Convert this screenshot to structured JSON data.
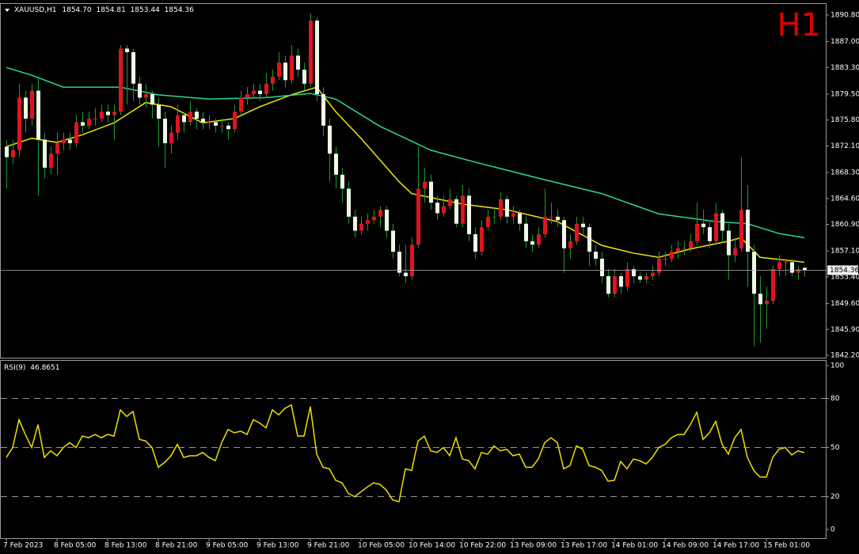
{
  "chart_data": [
    {
      "type": "candlestick",
      "title": "XAUUSD,H1",
      "ohlc_labels": [
        "1854.70",
        "1854.81",
        "1853.44",
        "1854.36"
      ],
      "annotation": "H1",
      "bull_color": "#e0141e",
      "bear_color": "#eefae6",
      "wick_color": "#1f9a2e",
      "ylim": [
        1841.86,
        1892.38
      ],
      "yticks": [
        {
          "value": 1890.8,
          "label": "1890.80"
        },
        {
          "value": 1887,
          "label": "1887.00"
        },
        {
          "value": 1883.3,
          "label": "1883.30"
        },
        {
          "value": 1879.5,
          "label": "1879.50"
        },
        {
          "value": 1875.8,
          "label": "1875.80"
        },
        {
          "value": 1872.1,
          "label": "1872.10"
        },
        {
          "value": 1868.3,
          "label": "1868.30"
        },
        {
          "value": 1864.6,
          "label": "1864.60"
        },
        {
          "value": 1860.9,
          "label": "1860.90"
        },
        {
          "value": 1857.1,
          "label": "1857.10"
        },
        {
          "value": 1853.4,
          "label": "1853.40"
        },
        {
          "value": 1849.6,
          "label": "1849.60"
        },
        {
          "value": 1845.9,
          "label": "1845.90"
        },
        {
          "value": 1842.2,
          "label": "1842.20"
        }
      ],
      "last_price": 1854.36,
      "categories": [
        "7 Feb 2023",
        null,
        null,
        null,
        null,
        null,
        null,
        null,
        "8 Feb 05:00",
        null,
        null,
        null,
        null,
        null,
        null,
        null,
        "8 Feb 13:00",
        null,
        null,
        null,
        null,
        null,
        null,
        null,
        "8 Feb 21:00",
        null,
        null,
        null,
        null,
        null,
        null,
        null,
        "9 Feb 05:00",
        null,
        null,
        null,
        null,
        null,
        null,
        null,
        "9 Feb 13:00",
        null,
        null,
        null,
        null,
        null,
        null,
        null,
        "9 Feb 21:00",
        null,
        null,
        null,
        null,
        null,
        null,
        null,
        "10 Feb 05:00",
        null,
        null,
        null,
        null,
        null,
        null,
        null,
        "10 Feb 14:00",
        null,
        null,
        null,
        null,
        null,
        null,
        null,
        "10 Feb 22:00",
        null,
        null,
        null,
        null,
        null,
        null,
        null,
        "13 Feb 09:00",
        null,
        null,
        null,
        null,
        null,
        null,
        null,
        "13 Feb 17:00",
        null,
        null,
        null,
        null,
        null,
        null,
        null,
        "14 Feb 01:00",
        null,
        null,
        null,
        null,
        null,
        null,
        null,
        "14 Feb 09:00",
        null,
        null,
        null,
        null,
        null,
        null,
        null,
        "14 Feb 17:00",
        null,
        null,
        null,
        null,
        null,
        null,
        null,
        "15 Feb 01:00",
        null,
        null,
        null,
        null,
        null,
        null
      ],
      "candles": [
        [
          1872,
          1873,
          1866,
          1870.5
        ],
        [
          1870.5,
          1873,
          1869.5,
          1871.5
        ],
        [
          1871.5,
          1881,
          1870.5,
          1879
        ],
        [
          1879,
          1880,
          1874,
          1876
        ],
        [
          1876,
          1881,
          1875,
          1880
        ],
        [
          1880,
          1882,
          1865,
          1873
        ],
        [
          1873,
          1874,
          1867.5,
          1869
        ],
        [
          1869,
          1872,
          1868,
          1871
        ],
        [
          1871,
          1874,
          1868,
          1872.5
        ],
        [
          1872.5,
          1874,
          1871.5,
          1873
        ],
        [
          1873,
          1874,
          1871.5,
          1872.5
        ],
        [
          1872.5,
          1876.5,
          1872,
          1875.5
        ],
        [
          1875.5,
          1877,
          1874,
          1875
        ],
        [
          1875,
          1877,
          1874.5,
          1876
        ],
        [
          1876,
          1877.5,
          1875,
          1876
        ],
        [
          1876,
          1878,
          1875.5,
          1877
        ],
        [
          1877,
          1878,
          1875.5,
          1876.5
        ],
        [
          1876.5,
          1878,
          1873,
          1877
        ],
        [
          1877,
          1886.5,
          1876.5,
          1886
        ],
        [
          1886,
          1886.5,
          1878,
          1885.5
        ],
        [
          1885.5,
          1886,
          1878.5,
          1881
        ],
        [
          1881,
          1882,
          1878,
          1879
        ],
        [
          1879,
          1881,
          1877.5,
          1879.5
        ],
        [
          1879.5,
          1880,
          1876,
          1878
        ],
        [
          1878,
          1879,
          1872,
          1876
        ],
        [
          1876,
          1877,
          1869,
          1872.5
        ],
        [
          1872.5,
          1875,
          1871,
          1874
        ],
        [
          1874,
          1878,
          1873,
          1876.5
        ],
        [
          1876.5,
          1877,
          1874,
          1875.5
        ],
        [
          1875.5,
          1878.5,
          1875,
          1877
        ],
        [
          1877,
          1877.5,
          1874.5,
          1876
        ],
        [
          1876,
          1877,
          1874.5,
          1875.5
        ],
        [
          1875.5,
          1876.5,
          1874.5,
          1875.5
        ],
        [
          1875.5,
          1876,
          1874,
          1875
        ],
        [
          1875,
          1876,
          1874,
          1875
        ],
        [
          1875,
          1875.5,
          1873,
          1874.5
        ],
        [
          1874.5,
          1878,
          1874,
          1877
        ],
        [
          1877,
          1880,
          1876.5,
          1879
        ],
        [
          1879,
          1880.5,
          1878,
          1879.5
        ],
        [
          1879.5,
          1881,
          1879,
          1880
        ],
        [
          1880,
          1881,
          1878.5,
          1879.5
        ],
        [
          1879.5,
          1882.5,
          1879,
          1881
        ],
        [
          1881,
          1883,
          1880,
          1882
        ],
        [
          1882,
          1885.5,
          1881.5,
          1884
        ],
        [
          1884,
          1885,
          1880.5,
          1881.5
        ],
        [
          1881.5,
          1886.5,
          1881,
          1885
        ],
        [
          1885,
          1886,
          1882,
          1883
        ],
        [
          1883,
          1884,
          1880,
          1881
        ],
        [
          1881,
          1891,
          1880.5,
          1890
        ],
        [
          1890,
          1890.5,
          1878.5,
          1879.5
        ],
        [
          1879.5,
          1880.5,
          1873.5,
          1875
        ],
        [
          1875,
          1876,
          1867,
          1871
        ],
        [
          1871,
          1872,
          1866,
          1868
        ],
        [
          1868,
          1869,
          1864,
          1866
        ],
        [
          1866,
          1867,
          1861,
          1862
        ],
        [
          1862,
          1863,
          1859,
          1860
        ],
        [
          1860,
          1862,
          1859.5,
          1861
        ],
        [
          1861,
          1862.5,
          1860,
          1861.5
        ],
        [
          1861.5,
          1863,
          1861,
          1862
        ],
        [
          1862,
          1863.5,
          1860.5,
          1863
        ],
        [
          1863,
          1863.5,
          1859,
          1860
        ],
        [
          1860,
          1861,
          1856,
          1857
        ],
        [
          1857,
          1858,
          1853.5,
          1854
        ],
        [
          1854,
          1858,
          1852.5,
          1853.5
        ],
        [
          1853.5,
          1859,
          1853,
          1858
        ],
        [
          1858,
          1872,
          1857.5,
          1866
        ],
        [
          1866,
          1869,
          1864,
          1867
        ],
        [
          1867,
          1868,
          1863,
          1864
        ],
        [
          1864,
          1865,
          1861.5,
          1862.5
        ],
        [
          1862.5,
          1865,
          1862,
          1863.5
        ],
        [
          1863.5,
          1866,
          1863,
          1864.5
        ],
        [
          1864.5,
          1865,
          1860.5,
          1861
        ],
        [
          1861,
          1866.5,
          1860.5,
          1865
        ],
        [
          1865,
          1866,
          1858.5,
          1859.5
        ],
        [
          1859.5,
          1860.5,
          1856,
          1857
        ],
        [
          1857,
          1861.5,
          1856.5,
          1860.5
        ],
        [
          1860.5,
          1863,
          1860,
          1862
        ],
        [
          1862,
          1863,
          1861,
          1862
        ],
        [
          1862,
          1865.5,
          1861.5,
          1864.5
        ],
        [
          1864.5,
          1865,
          1861,
          1862
        ],
        [
          1862,
          1863.5,
          1861,
          1862.5
        ],
        [
          1862.5,
          1863,
          1860,
          1861
        ],
        [
          1861,
          1862,
          1857.5,
          1858.5
        ],
        [
          1858.5,
          1859.5,
          1857,
          1858
        ],
        [
          1858,
          1860.5,
          1857.5,
          1859.5
        ],
        [
          1859.5,
          1866,
          1859,
          1862
        ],
        [
          1862,
          1864,
          1861,
          1862
        ],
        [
          1862,
          1863,
          1860.5,
          1861.5
        ],
        [
          1861.5,
          1862,
          1854,
          1857.5
        ],
        [
          1857.5,
          1859.5,
          1856,
          1858.5
        ],
        [
          1858.5,
          1862,
          1858,
          1861
        ],
        [
          1861,
          1862,
          1859.5,
          1860.5
        ],
        [
          1860.5,
          1861,
          1855,
          1857
        ],
        [
          1857,
          1858,
          1855,
          1856
        ],
        [
          1856,
          1857,
          1852.5,
          1853.5
        ],
        [
          1853.5,
          1854.5,
          1850.5,
          1851
        ],
        [
          1851,
          1854.5,
          1850.5,
          1853.5
        ],
        [
          1853.5,
          1854,
          1851,
          1852
        ],
        [
          1852,
          1855.5,
          1851.5,
          1854.5
        ],
        [
          1854.5,
          1855,
          1852.5,
          1853.5
        ],
        [
          1853.5,
          1854,
          1852.5,
          1853
        ],
        [
          1853,
          1854,
          1852.5,
          1853.5
        ],
        [
          1853.5,
          1855,
          1853,
          1854
        ],
        [
          1854,
          1857,
          1853.5,
          1856
        ],
        [
          1856,
          1857,
          1855,
          1856
        ],
        [
          1856,
          1858,
          1855.5,
          1857
        ],
        [
          1857,
          1858.5,
          1856,
          1857.5
        ],
        [
          1857.5,
          1858.5,
          1856.5,
          1857.5
        ],
        [
          1857.5,
          1859.5,
          1857,
          1858.5
        ],
        [
          1858.5,
          1864,
          1858,
          1861
        ],
        [
          1861,
          1863,
          1859.5,
          1860.5
        ],
        [
          1860.5,
          1861.5,
          1857.5,
          1858.5
        ],
        [
          1858.5,
          1864,
          1858,
          1862.5
        ],
        [
          1862.5,
          1863,
          1858.5,
          1860
        ],
        [
          1860,
          1861,
          1853,
          1856.5
        ],
        [
          1856.5,
          1859,
          1855.5,
          1857.5
        ],
        [
          1857.5,
          1870.5,
          1857,
          1863
        ],
        [
          1863,
          1866.5,
          1852,
          1857
        ],
        [
          1857,
          1858,
          1843.5,
          1851
        ],
        [
          1851,
          1853.5,
          1844,
          1849.5
        ],
        [
          1849.5,
          1852,
          1846,
          1850
        ],
        [
          1850,
          1855,
          1849.5,
          1854.5
        ],
        [
          1854.5,
          1856.5,
          1853.5,
          1855.5
        ],
        [
          1855.5,
          1856,
          1853.5,
          1855.5
        ],
        [
          1855.5,
          1856,
          1853.5,
          1854
        ],
        [
          1854,
          1855,
          1853,
          1854.5
        ],
        [
          1854.7,
          1854.81,
          1853.44,
          1854.36
        ]
      ],
      "series": [
        {
          "color": "#f2e600",
          "x": [
            0,
            4,
            8,
            12,
            17,
            22,
            26,
            31,
            36,
            40,
            45,
            49,
            52,
            56,
            62,
            64,
            72,
            79,
            87,
            94,
            99,
            103,
            108,
            114,
            116,
            119,
            126
          ],
          "values": [
            1872,
            1873.2,
            1872.6,
            1873.7,
            1875.4,
            1878.3,
            1877.7,
            1875.4,
            1876,
            1877.7,
            1879.4,
            1880.5,
            1877,
            1873.2,
            1867,
            1865.3,
            1863.8,
            1863,
            1861.3,
            1857.9,
            1856.8,
            1856.2,
            1857.4,
            1858.5,
            1859,
            1856.2,
            1855.5
          ]
        },
        {
          "color": "#2bd6a0",
          "x": [
            0,
            4,
            9,
            18,
            24,
            32,
            41,
            48,
            52,
            59,
            67,
            74,
            84,
            94,
            103,
            112,
            117,
            122,
            126
          ],
          "values": [
            1883.3,
            1882.2,
            1880.5,
            1880.5,
            1879.4,
            1878.8,
            1879,
            1879.6,
            1878.8,
            1874.9,
            1871.5,
            1869.8,
            1867.5,
            1865.3,
            1862.4,
            1861.3,
            1861,
            1859.6,
            1859
          ]
        }
      ]
    },
    {
      "type": "line",
      "name": "RSI(9)",
      "color": "#f0e000",
      "ylim": [
        -5.3,
        102.9
      ],
      "yticks": [
        100,
        80,
        50,
        20,
        0
      ],
      "levels": [
        80,
        50,
        20
      ],
      "values": [
        44,
        50,
        67,
        58,
        50,
        64,
        44,
        48,
        45,
        50,
        53,
        50,
        57,
        56,
        58,
        56,
        58,
        57,
        73,
        69,
        72,
        55,
        54,
        50,
        38,
        41,
        45,
        52,
        44,
        45,
        45,
        47,
        44,
        42,
        53,
        61,
        59,
        60,
        58,
        67,
        65,
        62,
        73,
        70,
        74,
        76,
        57,
        57,
        75,
        46,
        38,
        37,
        30,
        28.5,
        22,
        20,
        23,
        26,
        28.5,
        27.5,
        24,
        18,
        17,
        37,
        36,
        54,
        57,
        48,
        47,
        50,
        45,
        56,
        43,
        42,
        37,
        47,
        46,
        51,
        48,
        49,
        45,
        46,
        38,
        38,
        43,
        53,
        56,
        53,
        37,
        39,
        51,
        49,
        39,
        38,
        36,
        29.5,
        30,
        41.5,
        37,
        43,
        42,
        40,
        44,
        50,
        52,
        56,
        58,
        58,
        64,
        71.5,
        55,
        59,
        66,
        52,
        46,
        56,
        61,
        44,
        36,
        32,
        32,
        44,
        49,
        50,
        45.5,
        48,
        46.8651
      ]
    }
  ]
}
